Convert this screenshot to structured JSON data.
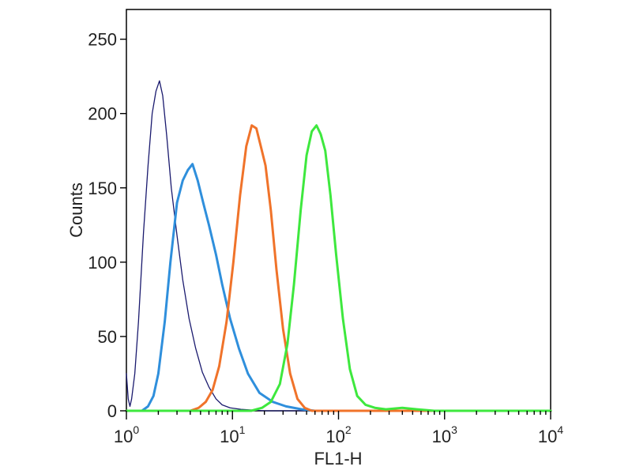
{
  "chart_data": {
    "type": "line",
    "title": "",
    "xlabel": "FL1-H",
    "ylabel": "Counts",
    "x_scale": "log",
    "xlim": [
      1,
      10000
    ],
    "ylim": [
      0,
      270
    ],
    "grid": false,
    "x_ticks": [
      {
        "base": "10",
        "exp": "0",
        "value": 1
      },
      {
        "base": "10",
        "exp": "1",
        "value": 10
      },
      {
        "base": "10",
        "exp": "2",
        "value": 100
      },
      {
        "base": "10",
        "exp": "3",
        "value": 1000
      },
      {
        "base": "10",
        "exp": "4",
        "value": 10000
      }
    ],
    "y_ticks": [
      "0",
      "50",
      "100",
      "150",
      "200",
      "250"
    ],
    "series": [
      {
        "color": "#1a1a6e",
        "width": 1.3,
        "points": [
          [
            1.0,
            25
          ],
          [
            1.04,
            8
          ],
          [
            1.08,
            3
          ],
          [
            1.12,
            8
          ],
          [
            1.2,
            25
          ],
          [
            1.3,
            60
          ],
          [
            1.45,
            120
          ],
          [
            1.6,
            165
          ],
          [
            1.75,
            200
          ],
          [
            1.9,
            215
          ],
          [
            2.05,
            222
          ],
          [
            2.2,
            212
          ],
          [
            2.4,
            185
          ],
          [
            2.65,
            150
          ],
          [
            3.0,
            118
          ],
          [
            3.4,
            88
          ],
          [
            3.9,
            62
          ],
          [
            4.5,
            42
          ],
          [
            5.2,
            26
          ],
          [
            6.0,
            16
          ],
          [
            7.0,
            8
          ],
          [
            8.0,
            4
          ],
          [
            9.5,
            2
          ],
          [
            12,
            1
          ],
          [
            20,
            0
          ],
          [
            60,
            0
          ],
          [
            10000,
            0
          ]
        ]
      },
      {
        "color": "#2f8fdc",
        "width": 3,
        "points": [
          [
            1.0,
            0
          ],
          [
            1.4,
            0
          ],
          [
            1.6,
            3
          ],
          [
            1.8,
            10
          ],
          [
            2.0,
            25
          ],
          [
            2.3,
            60
          ],
          [
            2.6,
            100
          ],
          [
            3.0,
            140
          ],
          [
            3.4,
            155
          ],
          [
            3.8,
            162
          ],
          [
            4.2,
            166
          ],
          [
            4.7,
            155
          ],
          [
            5.3,
            140
          ],
          [
            6.0,
            125
          ],
          [
            7.0,
            105
          ],
          [
            8.0,
            85
          ],
          [
            9.5,
            62
          ],
          [
            11.5,
            42
          ],
          [
            14,
            25
          ],
          [
            18,
            12
          ],
          [
            24,
            6
          ],
          [
            32,
            3
          ],
          [
            45,
            1
          ],
          [
            60,
            0
          ],
          [
            10000,
            0
          ]
        ]
      },
      {
        "color": "#f0732a",
        "width": 3,
        "points": [
          [
            1.0,
            0
          ],
          [
            4.0,
            0
          ],
          [
            4.8,
            2
          ],
          [
            5.6,
            6
          ],
          [
            6.5,
            14
          ],
          [
            7.5,
            30
          ],
          [
            8.8,
            60
          ],
          [
            10.2,
            100
          ],
          [
            11.8,
            145
          ],
          [
            13.5,
            178
          ],
          [
            15.2,
            192
          ],
          [
            16.8,
            190
          ],
          [
            18.5,
            178
          ],
          [
            20.5,
            165
          ],
          [
            23,
            135
          ],
          [
            26,
            95
          ],
          [
            30,
            55
          ],
          [
            35,
            25
          ],
          [
            41,
            8
          ],
          [
            48,
            2
          ],
          [
            56,
            0
          ],
          [
            10000,
            0
          ]
        ]
      },
      {
        "color": "#3ee83e",
        "width": 3,
        "points": [
          [
            1.0,
            0
          ],
          [
            15,
            0
          ],
          [
            19,
            2
          ],
          [
            23,
            6
          ],
          [
            28,
            18
          ],
          [
            33,
            45
          ],
          [
            38,
            85
          ],
          [
            44,
            135
          ],
          [
            50,
            172
          ],
          [
            56,
            188
          ],
          [
            62,
            192
          ],
          [
            68,
            186
          ],
          [
            75,
            175
          ],
          [
            84,
            145
          ],
          [
            95,
            105
          ],
          [
            110,
            62
          ],
          [
            128,
            28
          ],
          [
            150,
            10
          ],
          [
            180,
            4
          ],
          [
            220,
            2
          ],
          [
            280,
            1
          ],
          [
            400,
            2
          ],
          [
            550,
            1
          ],
          [
            800,
            0
          ],
          [
            10000,
            0
          ]
        ]
      }
    ]
  }
}
